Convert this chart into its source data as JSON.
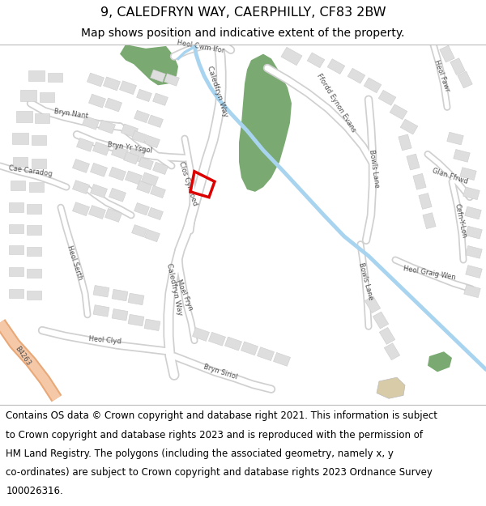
{
  "title_line1": "9, CALEDFRYN WAY, CAERPHILLY, CF83 2BW",
  "title_line2": "Map shows position and indicative extent of the property.",
  "footer_text_lines": [
    "Contains OS data © Crown copyright and database right 2021. This information is subject",
    "to Crown copyright and database rights 2023 and is reproduced with the permission of",
    "HM Land Registry. The polygons (including the associated geometry, namely x, y",
    "co-ordinates) are subject to Crown copyright and database rights 2023 Ordnance Survey",
    "100026316."
  ],
  "title_fontsize": 11.5,
  "subtitle_fontsize": 10,
  "footer_fontsize": 8.5,
  "bg_color": "#ffffff",
  "map_bg_color": "#f5f5f3",
  "green_color": "#7aaa72",
  "water_color": "#a8d4f0",
  "road_fill": "#ffffff",
  "road_edge": "#d0d0d0",
  "building_fill": "#dedede",
  "building_edge": "#cccccc",
  "plot_edge": "#dd0000",
  "b4263_fill": "#f5c8a8",
  "b4263_edge": "#e8a878",
  "tan_fill": "#d8cba8"
}
